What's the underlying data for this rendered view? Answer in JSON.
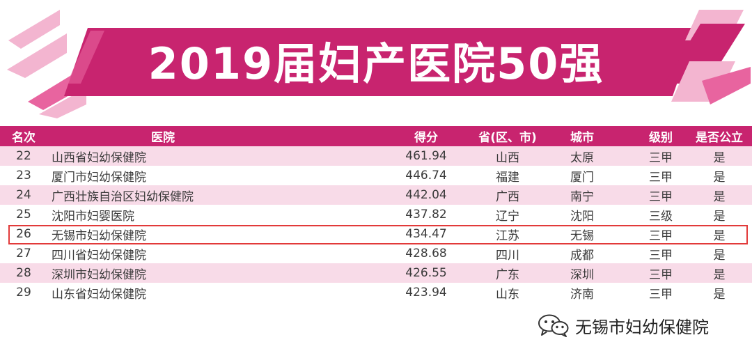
{
  "banner": {
    "title": "2019届妇产医院50强",
    "colors": {
      "primary": "#c8246f",
      "light": "#f3b5d0",
      "medium": "#e8649f"
    }
  },
  "table": {
    "headers": {
      "rank": "名次",
      "hospital": "医院",
      "score": "得分",
      "province": "省(区、市)",
      "city": "城市",
      "level": "级别",
      "public": "是否公立"
    },
    "rows": [
      {
        "rank": "22",
        "hospital": "山西省妇幼保健院",
        "score": "461.94",
        "province": "山西",
        "city": "太原",
        "level": "三甲",
        "public": "是"
      },
      {
        "rank": "23",
        "hospital": "厦门市妇幼保健院",
        "score": "446.74",
        "province": "福建",
        "city": "厦门",
        "level": "三甲",
        "public": "是"
      },
      {
        "rank": "24",
        "hospital": "广西壮族自治区妇幼保健院",
        "score": "442.04",
        "province": "广西",
        "city": "南宁",
        "level": "三甲",
        "public": "是"
      },
      {
        "rank": "25",
        "hospital": "沈阳市妇婴医院",
        "score": "437.82",
        "province": "辽宁",
        "city": "沈阳",
        "level": "三级",
        "public": "是"
      },
      {
        "rank": "26",
        "hospital": "无锡市妇幼保健院",
        "score": "434.47",
        "province": "江苏",
        "city": "无锡",
        "level": "三甲",
        "public": "是"
      },
      {
        "rank": "27",
        "hospital": "四川省妇幼保健院",
        "score": "428.68",
        "province": "四川",
        "city": "成都",
        "level": "三甲",
        "public": "是"
      },
      {
        "rank": "28",
        "hospital": "深圳市妇幼保健院",
        "score": "426.55",
        "province": "广东",
        "city": "深圳",
        "level": "三甲",
        "public": "是"
      },
      {
        "rank": "29",
        "hospital": "山东省妇幼保健院",
        "score": "423.94",
        "province": "山东",
        "city": "济南",
        "level": "三甲",
        "public": "是"
      }
    ],
    "highlighted_rank": "26",
    "highlight_color": "#e23a3a"
  },
  "watermark": {
    "text": "无锡市妇幼保健院",
    "icon": "wechat-icon"
  }
}
